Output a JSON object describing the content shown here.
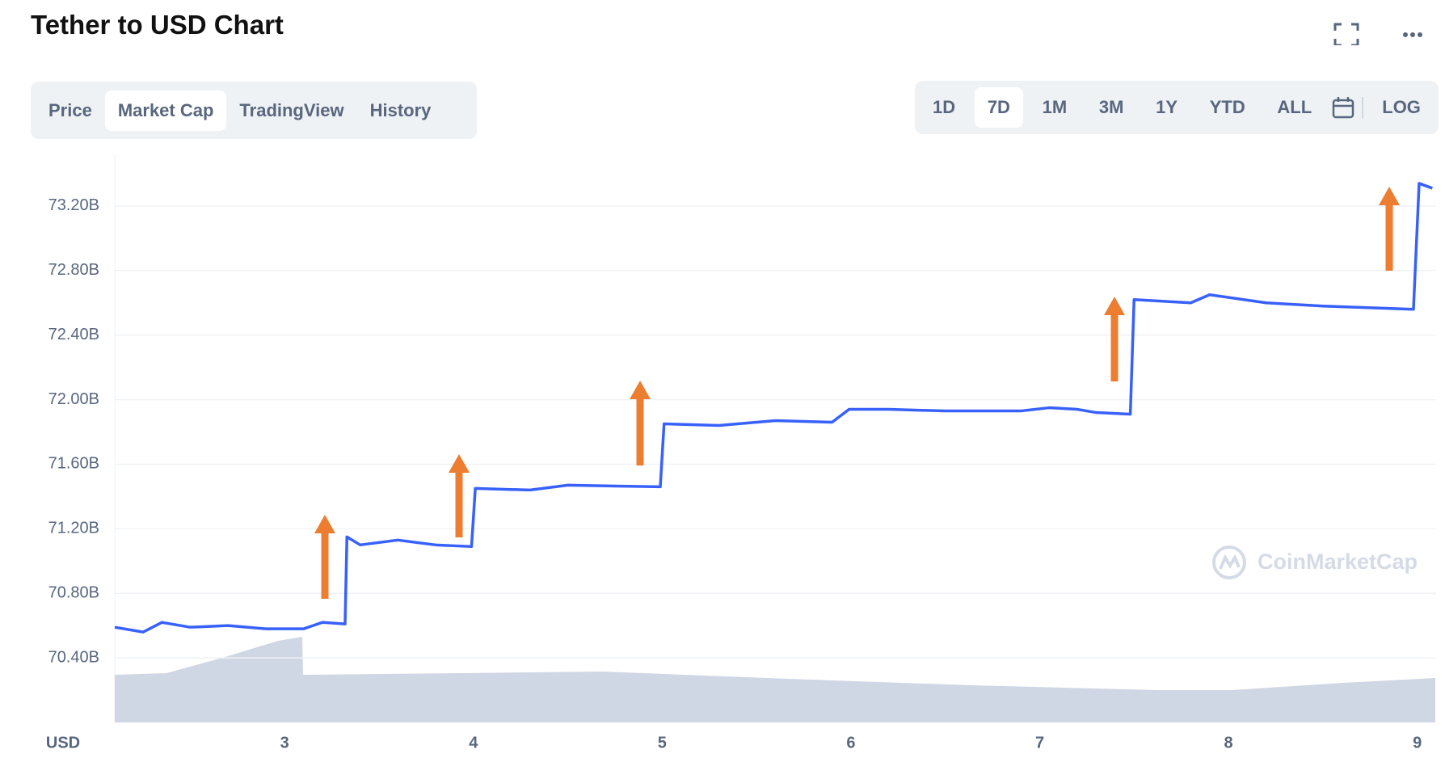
{
  "chart_data": {
    "type": "line",
    "title": "Tether to USD Chart",
    "x": [
      2.1,
      2.25,
      2.35,
      2.5,
      2.7,
      2.9,
      3.1,
      3.2,
      3.32,
      3.33,
      3.4,
      3.6,
      3.8,
      3.99,
      4.01,
      4.3,
      4.5,
      4.99,
      5.01,
      5.3,
      5.6,
      5.9,
      5.99,
      6.2,
      6.5,
      6.9,
      7.05,
      7.2,
      7.3,
      7.48,
      7.5,
      7.8,
      7.9,
      8.2,
      8.5,
      8.98,
      9.01,
      9.08
    ],
    "series": [
      {
        "color": "#3861fb",
        "values": [
          70.59,
          70.56,
          70.62,
          70.59,
          70.6,
          70.58,
          70.58,
          70.62,
          70.61,
          71.15,
          71.1,
          71.13,
          71.1,
          71.09,
          71.45,
          71.44,
          71.47,
          71.46,
          71.85,
          71.84,
          71.87,
          71.86,
          71.94,
          71.94,
          71.93,
          71.93,
          71.95,
          71.94,
          71.92,
          71.91,
          72.62,
          72.6,
          72.65,
          72.6,
          72.58,
          72.56,
          73.34,
          73.31
        ]
      }
    ],
    "xlim": [
      2.1,
      9.1
    ],
    "xticks": [
      3,
      4,
      5,
      6,
      7,
      8,
      9
    ],
    "ylim": [
      70.0,
      73.5
    ],
    "yticks": [
      {
        "value": 70.4,
        "label": "70.40B"
      },
      {
        "value": 70.8,
        "label": "70.80B"
      },
      {
        "value": 71.2,
        "label": "71.20B"
      },
      {
        "value": 71.6,
        "label": "71.60B"
      },
      {
        "value": 72.0,
        "label": "72.00B"
      },
      {
        "value": 72.4,
        "label": "72.40B"
      },
      {
        "value": 72.8,
        "label": "72.80B"
      },
      {
        "value": 73.2,
        "label": "73.20B"
      }
    ],
    "y_axis_label": "USD",
    "grid": true,
    "watermark": "CoinMarketCap"
  },
  "tabs": [
    "Price",
    "Market Cap",
    "TradingView",
    "History"
  ],
  "range_buttons": [
    "1D",
    "7D",
    "1M",
    "3M",
    "1Y",
    "YTD",
    "ALL",
    "LOG"
  ]
}
